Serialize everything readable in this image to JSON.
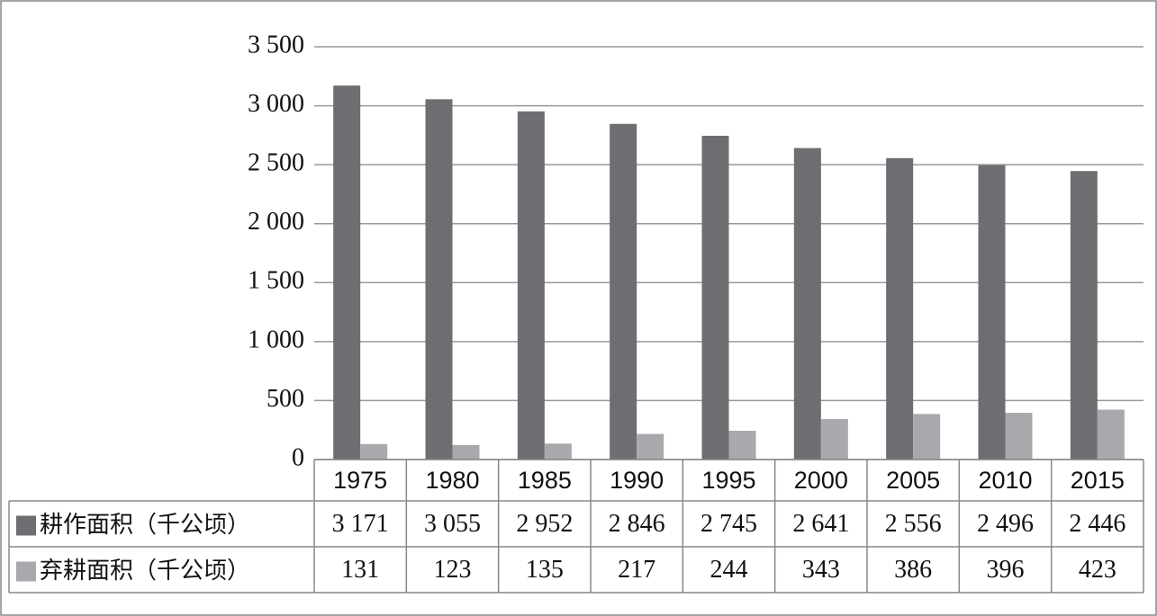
{
  "chart_data": {
    "type": "bar",
    "categories": [
      "1975",
      "1980",
      "1985",
      "1990",
      "1995",
      "2000",
      "2005",
      "2010",
      "2015"
    ],
    "series": [
      {
        "name": "耕作面积（千公顷）",
        "color": "#6d6e71",
        "values": [
          3171,
          3055,
          2952,
          2846,
          2745,
          2641,
          2556,
          2496,
          2446
        ],
        "value_labels": [
          "3 171",
          "3 055",
          "2 952",
          "2 846",
          "2 745",
          "2 641",
          "2 556",
          "2 496",
          "2 446"
        ]
      },
      {
        "name": "弃耕面积（千公顷）",
        "color": "#a7a9ac",
        "values": [
          131,
          123,
          135,
          217,
          244,
          343,
          386,
          396,
          423
        ]
      }
    ],
    "ylim": [
      0,
      3500
    ],
    "yticks": [
      0,
      500,
      {
        "value": 1000,
        "label": "1 000"
      },
      {
        "value": 1500,
        "label": "1 500"
      },
      {
        "value": 2000,
        "label": "2 000"
      },
      {
        "value": 2500,
        "label": "2 500"
      },
      {
        "value": 3000,
        "label": "3 000"
      },
      {
        "value": 3500,
        "label": "3 500"
      }
    ],
    "grid": true
  }
}
